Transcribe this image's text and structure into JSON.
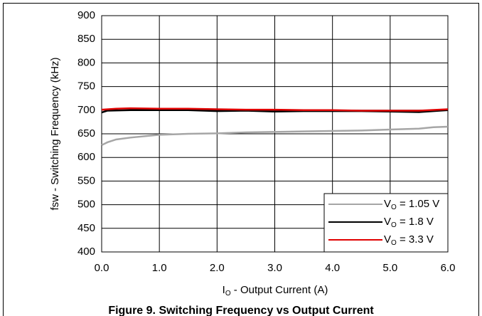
{
  "chart_data": {
    "type": "line",
    "caption": "Figure 9. Switching Frequency vs Output Current",
    "xlabel": "IO - Output Current (A)",
    "ylabel": "fsw - Switching Frequency (kHz)",
    "xlim": [
      0,
      6
    ],
    "ylim": [
      400,
      900
    ],
    "xticks": [
      {
        "value": 0,
        "label": "0.0"
      },
      {
        "value": 1,
        "label": "1.0"
      },
      {
        "value": 2,
        "label": "2.0"
      },
      {
        "value": 3,
        "label": "3.0"
      },
      {
        "value": 4,
        "label": "4.0"
      },
      {
        "value": 5,
        "label": "5.0"
      },
      {
        "value": 6,
        "label": "6.0"
      }
    ],
    "yticks": [
      400,
      450,
      500,
      550,
      600,
      650,
      700,
      750,
      800,
      850,
      900
    ],
    "grid": true,
    "legend": "lower right",
    "series": [
      {
        "name": "VO = 1.05 V",
        "color": "#a6a6a6",
        "x": [
          0,
          0.1,
          0.25,
          0.5,
          1,
          1.5,
          2,
          2.5,
          3,
          3.5,
          4,
          4.5,
          5,
          5.5,
          5.75,
          6
        ],
        "values": [
          626,
          632,
          638,
          642,
          648,
          650,
          651,
          653,
          654,
          655,
          656,
          657,
          659,
          661,
          664,
          665
        ]
      },
      {
        "name": "VO = 1.8 V",
        "color": "#000000",
        "x": [
          0,
          0.1,
          0.5,
          1,
          1.5,
          2,
          2.5,
          3,
          3.5,
          4,
          4.5,
          5,
          5.5,
          6
        ],
        "values": [
          695,
          699,
          700,
          700,
          700,
          698,
          699,
          697,
          698,
          698,
          698,
          697,
          696,
          700
        ]
      },
      {
        "name": "VO = 3.3 V",
        "color": "#e00000",
        "x": [
          0,
          0.25,
          0.5,
          1,
          1.5,
          2,
          2.5,
          3,
          3.5,
          4,
          4.5,
          5,
          5.5,
          6
        ],
        "values": [
          701,
          703,
          704,
          703,
          703,
          702,
          701,
          701,
          700,
          700,
          699,
          699,
          699,
          702
        ]
      }
    ]
  }
}
